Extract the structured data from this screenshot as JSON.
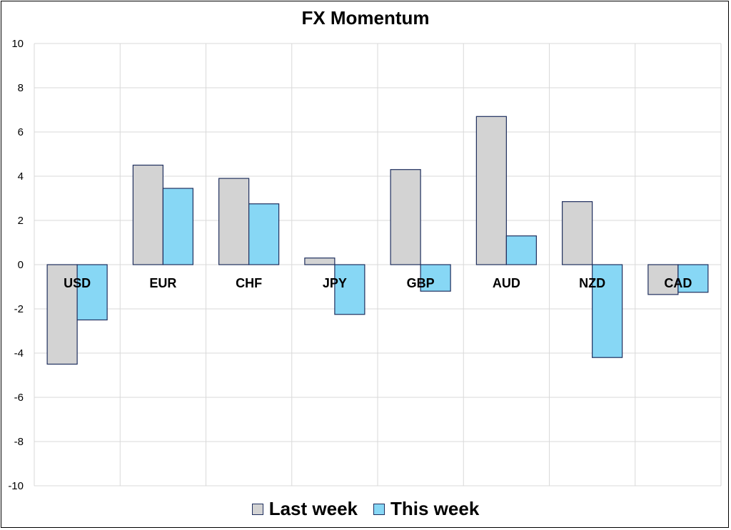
{
  "chart_data": {
    "type": "bar",
    "title": "FX Momentum",
    "xlabel": "",
    "ylabel": "",
    "ylim": [
      -10,
      10
    ],
    "yticks": [
      10,
      8,
      6,
      4,
      2,
      0,
      -2,
      -4,
      -6,
      -8,
      -10
    ],
    "grid": true,
    "legend_position": "bottom",
    "categories": [
      "USD",
      "EUR",
      "CHF",
      "JPY",
      "GBP",
      "AUD",
      "NZD",
      "CAD"
    ],
    "series": [
      {
        "name": "Last week",
        "color": "#d3d3d3",
        "values": [
          -4.5,
          4.5,
          3.9,
          0.3,
          4.3,
          6.7,
          2.85,
          -1.35
        ]
      },
      {
        "name": "This week",
        "color": "#87d7f5",
        "values": [
          -2.5,
          3.45,
          2.75,
          -2.25,
          -1.2,
          1.3,
          -4.2,
          -1.25
        ]
      }
    ]
  }
}
